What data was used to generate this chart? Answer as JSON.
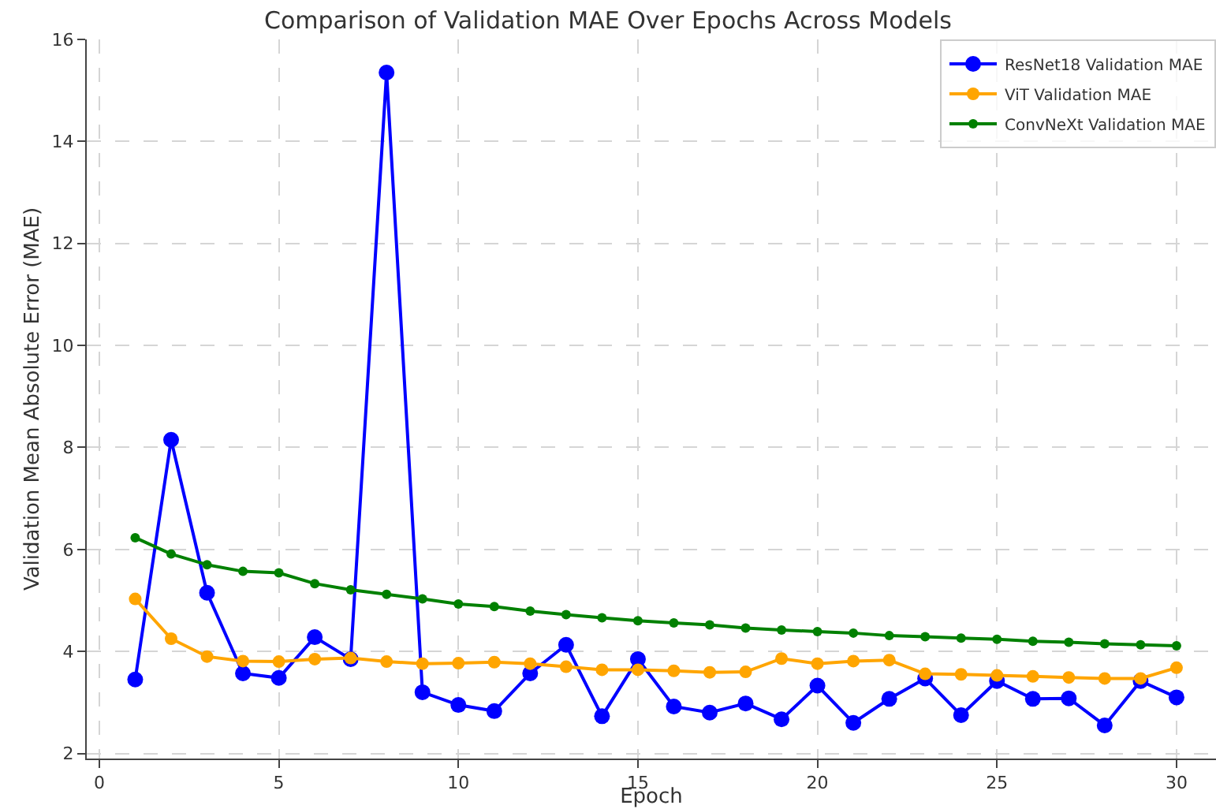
{
  "chart_data": {
    "type": "line",
    "title": "Comparison of Validation MAE Over Epochs Across Models",
    "xlabel": "Epoch",
    "ylabel": "Validation Mean Absolute Error (MAE)",
    "x": [
      1,
      2,
      3,
      4,
      5,
      6,
      7,
      8,
      9,
      10,
      11,
      12,
      13,
      14,
      15,
      16,
      17,
      18,
      19,
      20,
      21,
      22,
      23,
      24,
      25,
      26,
      27,
      28,
      29,
      30
    ],
    "series": [
      {
        "name": "ResNet18 Validation MAE",
        "color": "#0000ff",
        "values": [
          3.45,
          8.15,
          5.15,
          3.57,
          3.48,
          4.28,
          3.85,
          15.35,
          3.2,
          2.95,
          2.83,
          3.57,
          4.13,
          2.73,
          3.85,
          2.92,
          2.8,
          2.98,
          2.67,
          3.33,
          2.6,
          3.07,
          3.47,
          2.75,
          3.42,
          3.07,
          3.08,
          2.55,
          3.42,
          3.1
        ]
      },
      {
        "name": "ViT Validation MAE",
        "color": "#ffa500",
        "values": [
          5.03,
          4.25,
          3.9,
          3.81,
          3.8,
          3.85,
          3.87,
          3.8,
          3.76,
          3.77,
          3.79,
          3.76,
          3.7,
          3.64,
          3.64,
          3.62,
          3.59,
          3.6,
          3.86,
          3.76,
          3.81,
          3.83,
          3.56,
          3.55,
          3.53,
          3.51,
          3.49,
          3.47,
          3.47,
          3.68
        ]
      },
      {
        "name": "ConvNeXt Validation MAE",
        "color": "#008000",
        "values": [
          6.23,
          5.91,
          5.7,
          5.57,
          5.54,
          5.33,
          5.21,
          5.12,
          5.03,
          4.93,
          4.88,
          4.79,
          4.72,
          4.66,
          4.6,
          4.56,
          4.52,
          4.46,
          4.42,
          4.39,
          4.36,
          4.31,
          4.29,
          4.26,
          4.24,
          4.2,
          4.18,
          4.15,
          4.13,
          4.11
        ]
      }
    ],
    "xlim": [
      -0.35,
      31.1
    ],
    "xticks": [
      0,
      5,
      10,
      15,
      20,
      25,
      30
    ],
    "ylim": [
      1.9,
      16
    ],
    "yticks": [
      2,
      4,
      6,
      8,
      10,
      12,
      14,
      16
    ],
    "grid": true,
    "legend": "top right",
    "marker": "circle",
    "line_style": "solid"
  }
}
